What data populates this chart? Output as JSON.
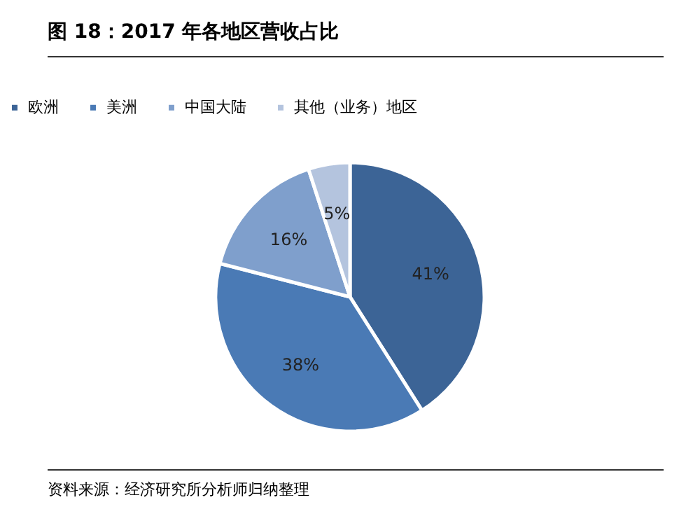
{
  "chart_data": {
    "type": "pie",
    "title": "图 18：2017 年各地区营收占比",
    "categories": [
      "欧洲",
      "美洲",
      "中国大陆",
      "其他（业务）地区"
    ],
    "values": [
      41,
      38,
      16,
      5
    ],
    "colors": [
      "#3c6496",
      "#4a7ab5",
      "#7f9fcc",
      "#b4c4de"
    ],
    "value_labels": [
      "41%",
      "38%",
      "16%",
      "5%"
    ],
    "legend": "top",
    "annotations": [
      "资料来源：经济研究所分析师归纳整理"
    ]
  }
}
